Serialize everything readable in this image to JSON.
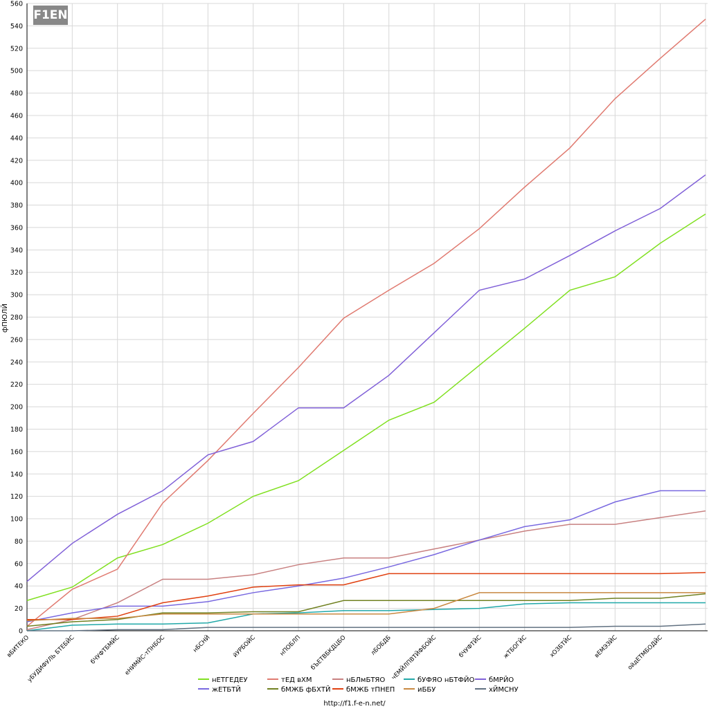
{
  "logo": "F1EN",
  "footer": "http://f1.f-e-n.net/",
  "chart_data": {
    "type": "line",
    "y_label": "фПЮЛЙ",
    "categories": [
      "вБИТЕКО",
      "уБУДИФУЛЬ БТЕБЙС",
      "бЧУФТБМЙС",
      "еНИМЙС-тПНБОС",
      "нБСНЙ",
      "йУРБОЙС",
      "нПОБЛП",
      "бЪЕТВБКДЦБО",
      "лБОБДБ",
      "чЕМЙЛПВТЙФБОЙС",
      "бЧУФТЙС",
      "жТБОГЙС",
      "хОЗБТЙС",
      "вЕМЭЗЙС",
      "ойдЕТМБОДЙС",
      null
    ],
    "ylim": [
      0,
      560
    ],
    "yticks": [
      0,
      20,
      40,
      60,
      80,
      100,
      120,
      140,
      160,
      180,
      200,
      220,
      240,
      260,
      280,
      300,
      320,
      340,
      360,
      380,
      400,
      420,
      440,
      460,
      480,
      500,
      520,
      540,
      560
    ],
    "grid": true,
    "series": [
      {
        "name": "нЕТГЕДЕУ",
        "color": "#80e020",
        "values": [
          27,
          39,
          65,
          77,
          96,
          120,
          134,
          161,
          188,
          204,
          237,
          270,
          304,
          316,
          346,
          372
        ]
      },
      {
        "name": "тЕД вХМ",
        "color": "#e07a70",
        "values": [
          4,
          37,
          55,
          114,
          152,
          194,
          235,
          279,
          304,
          328,
          359,
          396,
          431,
          475,
          511,
          546
        ]
      },
      {
        "name": "нБЛмБТЯО",
        "color": "#c88080",
        "values": [
          1,
          10,
          25,
          46,
          46,
          50,
          59,
          65,
          65,
          73,
          81,
          89,
          95,
          95,
          101,
          107
        ]
      },
      {
        "name": "бУФЯО нБТФЙО",
        "color": "#20a8a8",
        "values": [
          0,
          5,
          6,
          6,
          7,
          15,
          16,
          18,
          18,
          19,
          20,
          24,
          25,
          25,
          25,
          25
        ]
      },
      {
        "name": "бМРЙО",
        "color": "#8060d8",
        "values": [
          44,
          78,
          104,
          125,
          157,
          169,
          199,
          199,
          228,
          266,
          304,
          314,
          335,
          357,
          377,
          407
        ]
      },
      {
        "name": "жЕТБТЙ",
        "color": "#7868e0",
        "values": [
          8,
          16,
          22,
          22,
          26,
          34,
          40,
          47,
          57,
          68,
          81,
          93,
          99,
          115,
          125,
          125
        ]
      },
      {
        "name": "бМЖБ фБХТЙ",
        "color": "#708020",
        "values": [
          4,
          8,
          10,
          16,
          16,
          17,
          17,
          27,
          27,
          27,
          27,
          27,
          27,
          29,
          29,
          33
        ]
      },
      {
        "name": "бМЖБ тПНЕП",
        "color": "#e04010",
        "values": [
          10,
          10,
          13,
          25,
          31,
          39,
          41,
          41,
          51,
          51,
          51,
          51,
          51,
          51,
          51,
          52
        ]
      },
      {
        "name": "иББУ",
        "color": "#c88840",
        "values": [
          9,
          11,
          11,
          15,
          15,
          15,
          15,
          15,
          15,
          20,
          34,
          34,
          34,
          34,
          34,
          34
        ]
      },
      {
        "name": "хЙМСНУ",
        "color": "#607080",
        "values": [
          0,
          0,
          1,
          1,
          3,
          3,
          3,
          3,
          3,
          3,
          3,
          3,
          3,
          4,
          4,
          6
        ]
      }
    ]
  }
}
